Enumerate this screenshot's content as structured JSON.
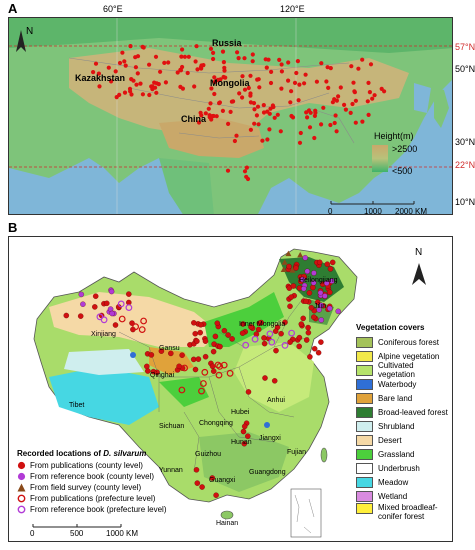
{
  "panel_a": {
    "label": "A",
    "top_ticks": [
      "60°E",
      "120°E"
    ],
    "right_ticks": [
      "57°N",
      "50°N",
      "30°N",
      "22°N",
      "10°N"
    ],
    "place_labels": {
      "russia": "Russia",
      "kazakhstan": "Kazakhstan",
      "mongolia": "Mongolia",
      "china": "China"
    },
    "height_legend": {
      "title": "Height(m)",
      "high": ">2500",
      "low": "<500"
    },
    "scale_bar": [
      "0",
      "1000",
      "2000 KM"
    ],
    "north": "N",
    "colors": {
      "sea": "#7fb6d8",
      "low": "#3fb36b",
      "mid": "#b8b37a",
      "high": "#c9a86a",
      "occurrence": "#e01010",
      "reference_line": "#d12b2b"
    }
  },
  "panel_b": {
    "label": "B",
    "north": "N",
    "place_labels": {
      "xinjiang": "Xinjiang",
      "gansu": "Gansu",
      "qinghai": "Qinghai",
      "tibet": "Tibet",
      "sichuan": "Sichuan",
      "inner_mongolia": "Inner Mongolia",
      "hubei": "Hubei",
      "hunan": "Hunan",
      "guizhou": "Guizhou",
      "yunnan": "Yunnan",
      "guangxi": "Guangxi",
      "guangdong": "Guangdong",
      "hainan": "Hainan",
      "jiangxi": "Jiangxi",
      "fujian": "Fujian",
      "chongqing": "Chongqing",
      "anhui": "Anhui",
      "jilin": "Jilin",
      "heilongjiang": "Heilongjiang"
    },
    "vegetation_legend": {
      "title": "Vegetation covers",
      "items": [
        {
          "label": "Coniferous forest",
          "color": "#a4c25a"
        },
        {
          "label": "Alpine vegetation",
          "color": "#f2e94a"
        },
        {
          "label": "Cultivated vegetation",
          "color": "#b6e36a"
        },
        {
          "label": "Waterbody",
          "color": "#2f6fd6"
        },
        {
          "label": "Bare land",
          "color": "#e0a23a"
        },
        {
          "label": "Broad-leaved forest",
          "color": "#2e7d32"
        },
        {
          "label": "Shrubland",
          "color": "#cfeeee"
        },
        {
          "label": "Desert",
          "color": "#f5d9a6"
        },
        {
          "label": "Grassland",
          "color": "#4ccf3c"
        },
        {
          "label": "Underbrush",
          "color": "#ffffff"
        },
        {
          "label": "Meadow",
          "color": "#46d7e3"
        },
        {
          "label": "Wetland",
          "color": "#d98be0"
        },
        {
          "label": "Mixed broadleaf-conifer forest",
          "color": "#ffef3a"
        }
      ]
    },
    "records_legend": {
      "title_prefix": "Recorded locations of ",
      "title_species": "D. silvarum",
      "items": [
        {
          "label": "From publications (county level)",
          "symbol": "dot",
          "color": "#d01010"
        },
        {
          "label": "From reference book (county level)",
          "symbol": "dot",
          "color": "#b13bd6"
        },
        {
          "label": "From field survey (county level)",
          "symbol": "triangle",
          "color": "#8a4a1a"
        },
        {
          "label": "From publications (prefecture level)",
          "symbol": "ring",
          "color": "#d01010"
        },
        {
          "label": "From reference book (prefecture level)",
          "symbol": "ring",
          "color": "#b13bd6"
        }
      ]
    },
    "scale_bar": [
      "0",
      "500",
      "1000 KM"
    ]
  }
}
